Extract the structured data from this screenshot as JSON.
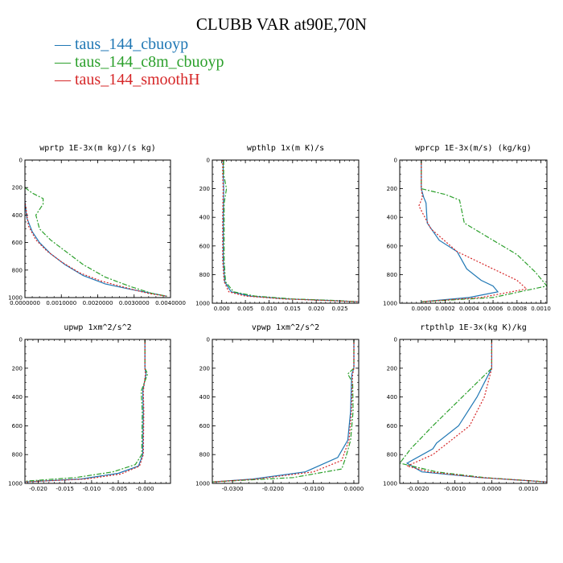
{
  "title": "CLUBB VAR at90E,70N",
  "legend": [
    {
      "label": "taus_144_cbuoyp",
      "color": "#1f77b4",
      "marker": "—"
    },
    {
      "label": "taus_144_c8m_cbuoyp",
      "color": "#2ca02c",
      "marker": "—"
    },
    {
      "label": "taus_144_smoothH",
      "color": "#d62728",
      "marker": "—"
    }
  ],
  "series_styles": [
    {
      "name": "taus_144_cbuoyp",
      "color": "#1f77b4",
      "dash": ""
    },
    {
      "name": "taus_144_c8m_cbuoyp",
      "color": "#2ca02c",
      "dash": "6,2,2,2"
    },
    {
      "name": "taus_144_smoothH",
      "color": "#d62728",
      "dash": "2,2"
    }
  ],
  "chart_data": [
    {
      "type": "line",
      "title": "wprtp  1E-3x(m kg)/(s kg)",
      "xlim": [
        0,
        0.004
      ],
      "ylim": [
        1000,
        0
      ],
      "xticks": [
        0,
        0.001,
        0.002,
        0.003,
        0.004
      ],
      "xtick_labels": [
        "0.0000000",
        "0.0010000",
        "0.0020000",
        "0.0030000",
        "0.0040000"
      ],
      "yticks": [
        0,
        200,
        400,
        600,
        800,
        1000
      ],
      "ytick_labels": [
        "0",
        "200",
        "400",
        "600",
        "800",
        "1000"
      ],
      "series": [
        {
          "name": "taus_144_cbuoyp",
          "x": [
            0,
            0,
            5e-05,
            0.0002,
            0.0004,
            0.0007,
            0.0011,
            0.0016,
            0.0022,
            0.0029,
            0.0035,
            0.0039
          ],
          "y": [
            200,
            300,
            420,
            520,
            600,
            680,
            760,
            840,
            900,
            940,
            970,
            990
          ]
        },
        {
          "name": "taus_144_c8m_cbuoyp",
          "x": [
            0,
            0.0002,
            0.0005,
            0.0005,
            0.0003,
            0.0004,
            0.0007,
            0.0011,
            0.0016,
            0.0022,
            0.0029,
            0.0035,
            0.0039
          ],
          "y": [
            200,
            240,
            280,
            320,
            400,
            500,
            580,
            660,
            760,
            850,
            920,
            970,
            990
          ]
        },
        {
          "name": "taus_144_smoothH",
          "x": [
            0,
            0,
            0.0001,
            0.0003,
            0.0006,
            0.001,
            0.0015,
            0.0021,
            0.0028,
            0.0034,
            0.0039
          ],
          "y": [
            200,
            300,
            480,
            580,
            660,
            740,
            820,
            880,
            930,
            970,
            990
          ]
        }
      ]
    },
    {
      "type": "line",
      "title": "wpthlp  1x(m K)/s",
      "xlim": [
        -0.002,
        0.029
      ],
      "ylim": [
        1000,
        0
      ],
      "xticks": [
        0,
        0.005,
        0.01,
        0.015,
        0.02,
        0.025
      ],
      "xtick_labels": [
        "0.000",
        "0.005",
        "0.010",
        "0.015",
        "0.020",
        "0.025"
      ],
      "yticks": [
        0,
        200,
        400,
        600,
        800,
        1000
      ],
      "ytick_labels": [
        "0",
        "200",
        "400",
        "600",
        "800",
        "1000"
      ],
      "series": [
        {
          "name": "taus_144_cbuoyp",
          "x": [
            0.0003,
            0.0003,
            0.0004,
            0.0003,
            0.0003,
            0.0006,
            0.002,
            0.006,
            0.014,
            0.022,
            0.029
          ],
          "y": [
            0,
            100,
            200,
            400,
            700,
            850,
            920,
            950,
            970,
            980,
            990
          ]
        },
        {
          "name": "taus_144_c8m_cbuoyp",
          "x": [
            0.0004,
            0.0004,
            0.001,
            0.0005,
            0.0005,
            0.0008,
            0.0025,
            0.007,
            0.015,
            0.023,
            0.029
          ],
          "y": [
            0,
            100,
            200,
            300,
            700,
            850,
            920,
            950,
            970,
            980,
            990
          ]
        },
        {
          "name": "taus_144_smoothH",
          "x": [
            0.0002,
            0.0002,
            0.0003,
            0.0002,
            0.0002,
            0.0005,
            0.0015,
            0.005,
            0.013,
            0.021,
            0.029
          ],
          "y": [
            0,
            100,
            200,
            400,
            700,
            850,
            920,
            950,
            970,
            980,
            990
          ]
        }
      ]
    },
    {
      "type": "line",
      "title": "wprcp  1E-3x(m/s) (kg/kg)",
      "xlim": [
        -0.00018,
        0.00105
      ],
      "ylim": [
        1000,
        0
      ],
      "xticks": [
        0,
        0.0002,
        0.0004,
        0.0006,
        0.0008,
        0.001
      ],
      "xtick_labels": [
        "0.0000",
        "0.0002",
        "0.0004",
        "0.0006",
        "0.0008",
        "0.0010"
      ],
      "yticks": [
        0,
        200,
        400,
        600,
        800,
        1000
      ],
      "ytick_labels": [
        "0",
        "200",
        "400",
        "600",
        "800",
        "1000"
      ],
      "series": [
        {
          "name": "taus_144_cbuoyp",
          "x": [
            0,
            0,
            2e-05,
            4e-05,
            5e-05,
            0.00015,
            0.0003,
            0.00038,
            0.0005,
            0.0006,
            0.00064,
            0.0004,
            0
          ],
          "y": [
            0,
            200,
            260,
            300,
            440,
            560,
            640,
            760,
            840,
            880,
            920,
            960,
            990
          ]
        },
        {
          "name": "taus_144_c8m_cbuoyp",
          "x": [
            0,
            0,
            0.0002,
            0.00032,
            0.00036,
            0.0006,
            0.0008,
            0.00095,
            0.00105,
            0.0006,
            0
          ],
          "y": [
            0,
            200,
            240,
            280,
            440,
            560,
            660,
            780,
            880,
            960,
            990
          ]
        },
        {
          "name": "taus_144_smoothH",
          "x": [
            0,
            0,
            1e-05,
            -2e-05,
            8e-05,
            0.0003,
            0.0006,
            0.0008,
            0.00088,
            0.0005,
            0
          ],
          "y": [
            0,
            200,
            260,
            320,
            480,
            640,
            760,
            840,
            900,
            960,
            990
          ]
        }
      ]
    },
    {
      "type": "line",
      "title": "upwp  1xm^2/s^2",
      "xlim": [
        -0.0225,
        0.0048
      ],
      "ylim": [
        1000,
        0
      ],
      "xticks": [
        -0.02,
        -0.015,
        -0.01,
        -0.005,
        0
      ],
      "xtick_labels": [
        "-0.020",
        "-0.015",
        "-0.010",
        "-0.005",
        "-0.000"
      ],
      "yticks": [
        0,
        200,
        400,
        600,
        800,
        1000
      ],
      "ytick_labels": [
        "0",
        "200",
        "400",
        "600",
        "800",
        "1000"
      ],
      "series": [
        {
          "name": "taus_144_cbuoyp",
          "x": [
            0,
            0,
            0.0002,
            -0.0004,
            -0.0003,
            -0.0004,
            -0.0012,
            -0.005,
            -0.012,
            -0.0225
          ],
          "y": [
            0,
            200,
            240,
            360,
            500,
            800,
            880,
            930,
            970,
            990
          ]
        },
        {
          "name": "taus_144_c8m_cbuoyp",
          "x": [
            0,
            0,
            0.0005,
            -0.0007,
            -0.0005,
            -0.0006,
            -0.0018,
            -0.006,
            -0.013,
            -0.0225
          ],
          "y": [
            0,
            200,
            240,
            360,
            500,
            800,
            870,
            920,
            960,
            985
          ]
        },
        {
          "name": "taus_144_smoothH",
          "x": [
            0,
            0,
            0.0001,
            -0.0003,
            -0.0002,
            -0.0003,
            -0.001,
            -0.0045,
            -0.011,
            -0.0225
          ],
          "y": [
            0,
            200,
            240,
            360,
            500,
            800,
            880,
            935,
            970,
            990
          ]
        }
      ]
    },
    {
      "type": "line",
      "title": "vpwp  1xm^2/s^2",
      "xlim": [
        -0.035,
        0.0012
      ],
      "ylim": [
        1000,
        0
      ],
      "xticks": [
        -0.03,
        -0.02,
        -0.01,
        0
      ],
      "xtick_labels": [
        "-0.0300",
        "-0.0200",
        "-0.0100",
        "0.0000"
      ],
      "yticks": [
        0,
        200,
        400,
        600,
        800,
        1000
      ],
      "ytick_labels": [
        "0",
        "200",
        "400",
        "600",
        "800",
        "1000"
      ],
      "series": [
        {
          "name": "taus_144_cbuoyp",
          "x": [
            0,
            0,
            -0.0005,
            -0.0006,
            -0.0008,
            -0.0015,
            -0.004,
            -0.012,
            -0.025,
            -0.035
          ],
          "y": [
            0,
            200,
            240,
            300,
            500,
            700,
            820,
            920,
            970,
            990
          ]
        },
        {
          "name": "taus_144_c8m_cbuoyp",
          "x": [
            0,
            0,
            -0.0015,
            -0.0003,
            -0.0002,
            -0.0008,
            -0.002,
            -0.003,
            -0.015,
            -0.035
          ],
          "y": [
            0,
            200,
            240,
            300,
            500,
            700,
            820,
            900,
            960,
            990
          ]
        },
        {
          "name": "taus_144_smoothH",
          "x": [
            0,
            0,
            -0.0003,
            -0.0004,
            -0.0006,
            -0.0012,
            -0.003,
            -0.01,
            -0.024,
            -0.035
          ],
          "y": [
            0,
            200,
            240,
            300,
            500,
            700,
            840,
            920,
            970,
            990
          ]
        }
      ]
    },
    {
      "type": "line",
      "title": "rtpthlp  1E-3x(kg K)/kg",
      "xlim": [
        -0.0025,
        0.0015
      ],
      "ylim": [
        1000,
        0
      ],
      "xticks": [
        -0.002,
        -0.001,
        0,
        0.001
      ],
      "xtick_labels": [
        "-0.0020",
        "-0.0010",
        "0.0000",
        "0.0010"
      ],
      "yticks": [
        0,
        200,
        400,
        600,
        800,
        1000
      ],
      "ytick_labels": [
        "0",
        "200",
        "400",
        "600",
        "800",
        "1000"
      ],
      "series": [
        {
          "name": "taus_144_cbuoyp",
          "x": [
            0,
            0,
            -0.0004,
            -0.0009,
            -0.0015,
            -0.0016,
            -0.0023,
            -0.0019,
            -0.0003,
            0.0015
          ],
          "y": [
            0,
            200,
            400,
            600,
            720,
            760,
            860,
            920,
            960,
            990
          ]
        },
        {
          "name": "taus_144_c8m_cbuoyp",
          "x": [
            0,
            0,
            -0.0008,
            -0.0016,
            -0.0022,
            -0.0025,
            -0.0015,
            -0.0002,
            0.0015
          ],
          "y": [
            0,
            200,
            400,
            600,
            760,
            860,
            920,
            960,
            990
          ]
        },
        {
          "name": "taus_144_smoothH",
          "x": [
            0,
            0,
            -0.0002,
            -0.0006,
            -0.0012,
            -0.0016,
            -0.0023,
            -0.0017,
            -0.0003,
            0.0015
          ],
          "y": [
            0,
            200,
            400,
            600,
            720,
            800,
            880,
            920,
            960,
            990
          ]
        }
      ]
    }
  ]
}
